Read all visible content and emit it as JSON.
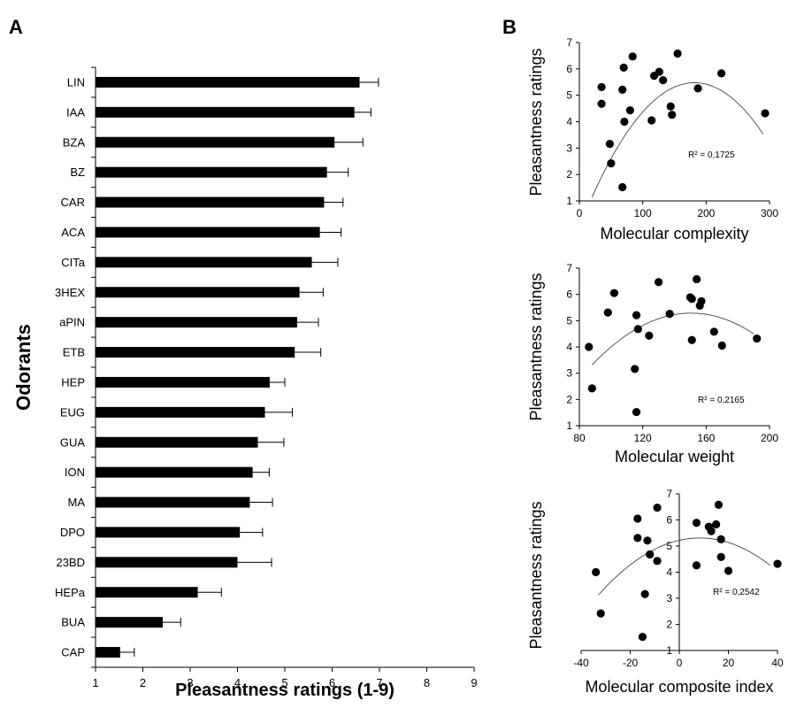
{
  "figure": {
    "panel_a_label": "A",
    "panel_b_label": "B"
  },
  "chart_data": [
    {
      "type": "bar",
      "orientation": "horizontal",
      "title": "",
      "xlabel": "Pleasantness ratings (1-9)",
      "ylabel": "Odorants",
      "xlim": [
        1,
        9
      ],
      "xticks": [
        1,
        2,
        3,
        4,
        5,
        6,
        7,
        8,
        9
      ],
      "categories": [
        "LIN",
        "IAA",
        "BZA",
        "BZ",
        "CAR",
        "ACA",
        "CITa",
        "3HEX",
        "aPIN",
        "ETB",
        "HEP",
        "EUG",
        "GUA",
        "ION",
        "MA",
        "DPO",
        "23BD",
        "HEPa",
        "BUA",
        "CAP"
      ],
      "values": [
        6.58,
        6.47,
        6.05,
        5.89,
        5.83,
        5.74,
        5.57,
        5.31,
        5.26,
        5.21,
        4.68,
        4.58,
        4.43,
        4.32,
        4.26,
        4.05,
        4.0,
        3.16,
        2.42,
        1.52
      ],
      "errors": [
        0.4,
        0.35,
        0.6,
        0.45,
        0.4,
        0.45,
        0.55,
        0.5,
        0.45,
        0.55,
        0.32,
        0.58,
        0.55,
        0.35,
        0.48,
        0.48,
        0.72,
        0.5,
        0.38,
        0.3
      ],
      "grid": false
    },
    {
      "type": "scatter",
      "title": "",
      "xlabel": "Molecular complexity",
      "ylabel": "Pleasantness ratings",
      "xlim": [
        0,
        300
      ],
      "ylim": [
        1,
        7
      ],
      "xticks": [
        0,
        100,
        200,
        300
      ],
      "yticks": [
        1,
        2,
        3,
        4,
        5,
        6,
        7
      ],
      "x": [
        35,
        35,
        48,
        50,
        68,
        68,
        70,
        71,
        80,
        84,
        114,
        118,
        126,
        132,
        144,
        146,
        155,
        187,
        224,
        293
      ],
      "y": [
        5.31,
        4.68,
        3.16,
        2.42,
        1.52,
        5.21,
        6.05,
        4.0,
        4.43,
        6.47,
        4.05,
        5.74,
        5.89,
        5.57,
        4.58,
        4.26,
        6.58,
        5.26,
        5.83,
        4.32
      ],
      "fit": {
        "type": "quadratic",
        "x": [
          20,
          290
        ],
        "coef": [
          -0.000166,
          0.0603,
          0.0
        ],
        "r2_label": "R² = 0,1725"
      }
    },
    {
      "type": "scatter",
      "title": "",
      "xlabel": "Molecular weight",
      "ylabel": "Pleasantness ratings",
      "xlim": [
        80,
        200
      ],
      "ylim": [
        1,
        7
      ],
      "xticks": [
        80,
        120,
        160,
        200
      ],
      "yticks": [
        1,
        2,
        3,
        4,
        5,
        6,
        7
      ],
      "x": [
        86,
        88,
        98,
        102,
        115,
        116,
        116,
        117,
        124,
        130,
        137,
        150,
        151,
        151,
        154,
        156,
        157,
        165,
        170,
        192
      ],
      "y": [
        4.0,
        2.42,
        5.31,
        6.05,
        3.16,
        5.21,
        1.52,
        4.68,
        4.43,
        6.47,
        5.26,
        5.89,
        5.83,
        4.26,
        6.58,
        5.57,
        5.74,
        4.58,
        4.05,
        4.32
      ],
      "fit": {
        "type": "quadratic",
        "x": [
          88,
          190
        ],
        "coef": [
          -0.000505,
          0.152,
          -6.15
        ],
        "r2_label": "R² = 0,2165"
      }
    },
    {
      "type": "scatter",
      "title": "",
      "xlabel": "Molecular composite index",
      "ylabel": "Pleasantness ratings",
      "xlim": [
        -40,
        40
      ],
      "ylim": [
        1,
        7
      ],
      "xticks": [
        -40,
        -20,
        0,
        20,
        40
      ],
      "yticks": [
        1,
        2,
        3,
        4,
        5,
        6,
        7
      ],
      "x": [
        -34,
        -32,
        -17,
        -17,
        -15,
        -14,
        -13,
        -12,
        -9,
        -9,
        7,
        7,
        12,
        13,
        15,
        16,
        17,
        17,
        20,
        40
      ],
      "y": [
        4.0,
        2.42,
        5.31,
        6.05,
        1.52,
        3.16,
        5.21,
        4.68,
        4.43,
        6.47,
        5.89,
        4.26,
        5.74,
        5.57,
        5.83,
        6.58,
        4.58,
        5.26,
        4.05,
        4.32
      ],
      "fit": {
        "type": "quadratic",
        "x": [
          -33,
          37
        ],
        "coef": [
          -0.00128,
          0.0214,
          5.22
        ],
        "r2_label": "R² = 0,2542"
      }
    }
  ]
}
